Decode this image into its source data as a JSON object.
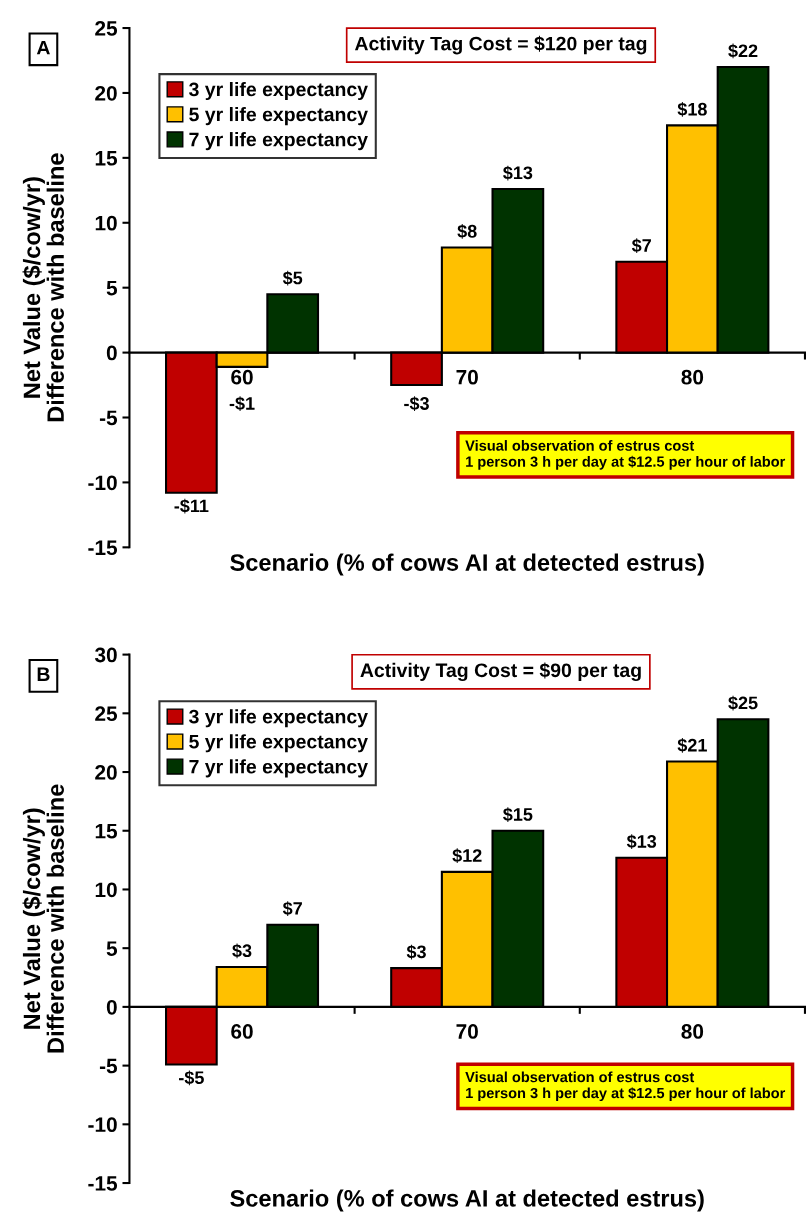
{
  "chart_data": [
    {
      "type": "bar",
      "title": "Activity Tag Cost = $120 per tag",
      "annotations": [
        "A",
        "Visual observation of estrus cost\n1 person 3 h per day at $12.5 per hour of labor"
      ],
      "xlabel": "Scenario (% of cows AI at detected estrus)",
      "ylabel": "Net Value ($/cow/yr)\nDifference with baseline",
      "categories": [
        "60",
        "70",
        "80"
      ],
      "ylim": [
        -15,
        25
      ],
      "yticks": [
        -15,
        -10,
        -5,
        0,
        5,
        10,
        15,
        20,
        25
      ],
      "legend": "top left",
      "series": [
        {
          "name": "3 yr life expectancy",
          "color": "#c00000",
          "values": [
            -10.8,
            -2.5,
            7.0
          ],
          "value_labels": [
            "-$11",
            "-$3",
            "$7"
          ]
        },
        {
          "name": "5 yr life expectancy",
          "color": "#ffc000",
          "values": [
            -1.1,
            8.1,
            17.5
          ],
          "value_labels": [
            "-$1",
            "$8",
            "$18"
          ]
        },
        {
          "name": "7 yr life expectancy",
          "color": "#003300",
          "values": [
            4.5,
            12.6,
            22.0
          ],
          "value_labels": [
            "$5",
            "$13",
            "$22"
          ]
        }
      ]
    },
    {
      "type": "bar",
      "title": "Activity Tag Cost = $90 per tag",
      "annotations": [
        "B",
        "Visual observation of estrus cost\n1 person 3 h per day at $12.5 per hour of labor"
      ],
      "xlabel": "Scenario (% of cows AI at detected estrus)",
      "ylabel": "Net Value ($/cow/yr)\nDifference with baseline",
      "categories": [
        "60",
        "70",
        "80"
      ],
      "ylim": [
        -15,
        30
      ],
      "yticks": [
        -15,
        -10,
        -5,
        0,
        5,
        10,
        15,
        20,
        25,
        30
      ],
      "legend": "top left",
      "series": [
        {
          "name": "3 yr life expectancy",
          "color": "#c00000",
          "values": [
            -4.9,
            3.3,
            12.7
          ],
          "value_labels": [
            "-$5",
            "$3",
            "$13"
          ]
        },
        {
          "name": "5 yr life expectancy",
          "color": "#ffc000",
          "values": [
            3.4,
            11.5,
            20.9
          ],
          "value_labels": [
            "$3",
            "$12",
            "$21"
          ]
        },
        {
          "name": "7 yr life expectancy",
          "color": "#003300",
          "values": [
            7.0,
            15.0,
            24.5
          ],
          "value_labels": [
            "$7",
            "$15",
            "$25"
          ]
        }
      ]
    }
  ]
}
